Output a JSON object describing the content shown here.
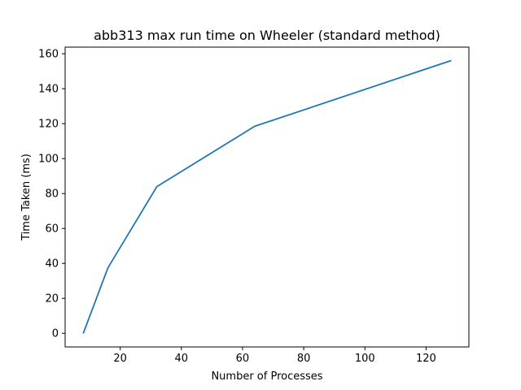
{
  "chart_data": {
    "type": "line",
    "title": "abb313 max run time on Wheeler (standard method)",
    "xlabel": "Number of Processes",
    "ylabel": "Time Taken (ms)",
    "xlim": [
      2,
      134
    ],
    "ylim": [
      -7.8,
      163.8
    ],
    "xticks": [
      20,
      40,
      60,
      80,
      100,
      120
    ],
    "yticks": [
      0,
      20,
      40,
      60,
      80,
      100,
      120,
      140,
      160
    ],
    "grid": false,
    "series": [
      {
        "name": "",
        "color": "#1f77b4",
        "x": [
          8,
          16,
          32,
          64,
          128
        ],
        "y": [
          0.3,
          37.5,
          84.0,
          118.5,
          156.0
        ]
      }
    ]
  }
}
